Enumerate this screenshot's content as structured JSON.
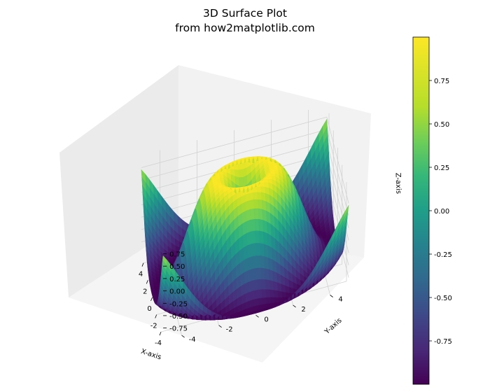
{
  "chart_data": {
    "type": "surface",
    "title": [
      "3D Surface Plot",
      "from how2matplotlib.com"
    ],
    "function": "z = sin(sqrt(x^2 + y^2))",
    "x": {
      "label": "X-axis",
      "range": [
        -5,
        5
      ],
      "ticks": [
        -4,
        -2,
        0,
        2,
        4
      ]
    },
    "y": {
      "label": "Y-axis",
      "range": [
        -5,
        5
      ],
      "ticks": [
        -4,
        -2,
        0,
        2,
        4
      ]
    },
    "z": {
      "label": "Z-axis",
      "range": [
        -1,
        1
      ],
      "ticks": [
        "-0.75",
        "-0.50",
        "-0.25",
        "0.00",
        "0.25",
        "0.50",
        "0.75"
      ]
    },
    "colormap": "viridis",
    "colorbar": {
      "ticks": [
        "-0.75",
        "-0.50",
        "-0.25",
        "0.00",
        "0.25",
        "0.50",
        "0.75"
      ],
      "range": [
        -1,
        1
      ]
    },
    "grid": true
  }
}
